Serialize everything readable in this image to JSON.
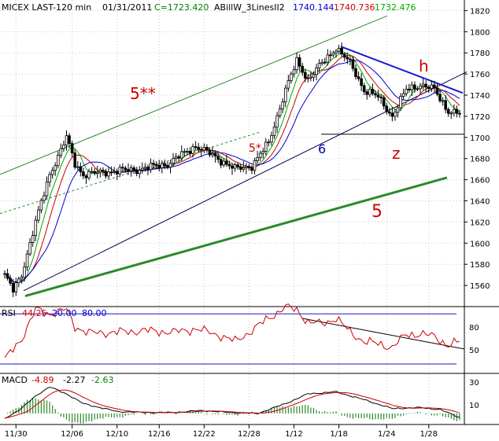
{
  "chart_data": [
    {
      "type": "candlestick",
      "header": {
        "symbol": "MICEX LAST-120 min",
        "date": "01/31/2011",
        "close_label": "C=1723.420",
        "indicator_name": "ABillW_3LinesII2",
        "ind_v1": "1740.144",
        "ind_v2": "1740.736",
        "ind_v3": "1732.476"
      },
      "colors": {
        "v1": "#0000cc",
        "v2": "#cc0000",
        "v3": "#00aa00",
        "close": "#008000"
      },
      "ylim": [
        1540,
        1830
      ],
      "yticks": [
        1560,
        1580,
        1600,
        1620,
        1640,
        1660,
        1680,
        1700,
        1720,
        1740,
        1760,
        1780,
        1800,
        1820
      ],
      "ytick_labels": [
        "1560",
        "1580",
        "1600",
        "1620",
        "1640",
        "1660",
        "1680",
        "1700",
        "1720",
        "1740",
        "1760",
        "1780",
        "1800",
        "1820"
      ],
      "anchors": [
        [
          0,
          1570
        ],
        [
          3,
          1555
        ],
        [
          6,
          1570
        ],
        [
          11,
          1620
        ],
        [
          16,
          1665
        ],
        [
          22,
          1700
        ],
        [
          25,
          1675
        ],
        [
          28,
          1665
        ],
        [
          38,
          1668
        ],
        [
          48,
          1670
        ],
        [
          58,
          1675
        ],
        [
          68,
          1692
        ],
        [
          76,
          1680
        ],
        [
          82,
          1670
        ],
        [
          88,
          1673
        ],
        [
          94,
          1695
        ],
        [
          100,
          1745
        ],
        [
          104,
          1772
        ],
        [
          108,
          1755
        ],
        [
          113,
          1770
        ],
        [
          118,
          1785
        ],
        [
          123,
          1770
        ],
        [
          128,
          1745
        ],
        [
          133,
          1738
        ],
        [
          138,
          1720
        ],
        [
          143,
          1745
        ],
        [
          148,
          1750
        ],
        [
          153,
          1745
        ],
        [
          158,
          1725
        ],
        [
          162,
          1722
        ]
      ],
      "annotations": [
        {
          "text": "5**",
          "color": "#cc0000"
        },
        {
          "text": "5*",
          "color": "#cc0000"
        },
        {
          "text": "6",
          "color": "#0000aa"
        },
        {
          "text": "z",
          "color": "#cc0000"
        },
        {
          "text": "h",
          "color": "#cc0000"
        },
        {
          "text": "5",
          "color": "#cc0000"
        }
      ]
    },
    {
      "type": "line",
      "label": "RSI",
      "values": [
        "44.25",
        "20.00",
        "80.00"
      ],
      "ylim": [
        20,
        100
      ],
      "levels": [
        20,
        80
      ],
      "ytick_labels": [
        "80",
        "50"
      ],
      "anchors": [
        [
          0,
          25
        ],
        [
          6,
          50
        ],
        [
          11,
          85
        ],
        [
          16,
          80
        ],
        [
          22,
          85
        ],
        [
          25,
          65
        ],
        [
          30,
          57
        ],
        [
          40,
          58
        ],
        [
          50,
          60
        ],
        [
          60,
          58
        ],
        [
          68,
          62
        ],
        [
          76,
          55
        ],
        [
          82,
          47
        ],
        [
          88,
          60
        ],
        [
          94,
          75
        ],
        [
          100,
          88
        ],
        [
          104,
          85
        ],
        [
          108,
          70
        ],
        [
          113,
          68
        ],
        [
          118,
          75
        ],
        [
          123,
          58
        ],
        [
          128,
          47
        ],
        [
          133,
          44
        ],
        [
          138,
          40
        ],
        [
          143,
          55
        ],
        [
          148,
          56
        ],
        [
          153,
          53
        ],
        [
          158,
          42
        ],
        [
          162,
          47
        ]
      ]
    },
    {
      "type": "line",
      "label": "MACD",
      "values": [
        "-4.89",
        "-2.27",
        "-2.63"
      ],
      "ylim": [
        -8,
        40
      ],
      "ytick_labels": [
        "30",
        "10"
      ],
      "anchors": [
        [
          0,
          -5
        ],
        [
          6,
          5
        ],
        [
          11,
          18
        ],
        [
          16,
          27
        ],
        [
          22,
          20
        ],
        [
          28,
          10
        ],
        [
          40,
          2
        ],
        [
          50,
          1
        ],
        [
          60,
          1
        ],
        [
          70,
          3
        ],
        [
          80,
          1
        ],
        [
          90,
          0
        ],
        [
          100,
          10
        ],
        [
          108,
          20
        ],
        [
          118,
          22
        ],
        [
          128,
          14
        ],
        [
          138,
          5
        ],
        [
          148,
          6
        ],
        [
          155,
          4
        ],
        [
          162,
          -4
        ]
      ]
    }
  ],
  "x_axis": {
    "labels": [
      "11/30",
      "12/06",
      "12/10",
      "12/16",
      "12/22",
      "12/28",
      "1/12",
      "1/18",
      "1/24",
      "1/28"
    ]
  }
}
